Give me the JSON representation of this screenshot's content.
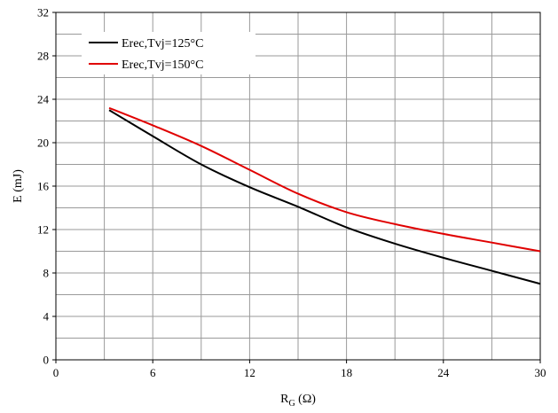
{
  "chart_data": {
    "type": "line",
    "xlabel_main": "R",
    "xlabel_sub": "G",
    "xlabel_unit": " (Ω)",
    "ylabel": "E (mJ)",
    "xlim": [
      0,
      30
    ],
    "ylim": [
      0,
      32
    ],
    "x_ticks": [
      0,
      6,
      12,
      18,
      24,
      30
    ],
    "y_ticks": [
      0,
      4,
      8,
      12,
      16,
      20,
      24,
      28,
      32
    ],
    "x_minor_grid_step": 3,
    "y_minor_grid_step": 2,
    "grid": true,
    "legend_position": "top-left",
    "series": [
      {
        "name": "Erec,Tvj=125°C",
        "color": "#000000",
        "x": [
          3.3,
          6,
          9,
          12,
          15,
          18,
          21,
          24,
          27,
          30
        ],
        "y": [
          23.0,
          20.6,
          18.0,
          15.9,
          14.1,
          12.2,
          10.7,
          9.4,
          8.2,
          7.0
        ]
      },
      {
        "name": "Erec,Tvj=150°C",
        "color": "#e00000",
        "x": [
          3.3,
          6,
          9,
          12,
          15,
          18,
          21,
          24,
          27,
          30
        ],
        "y": [
          23.2,
          21.6,
          19.7,
          17.5,
          15.3,
          13.6,
          12.5,
          11.6,
          10.8,
          10.0
        ]
      }
    ]
  }
}
